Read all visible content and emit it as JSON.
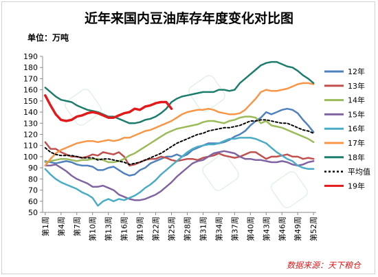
{
  "chart_data": {
    "type": "line",
    "title": "近年来国内豆油库存年度变化对比图",
    "unit_label": "单位：万吨",
    "source": "数据来源：天下粮仓",
    "ylim": [
      50,
      190
    ],
    "yticks": [
      50,
      60,
      70,
      80,
      90,
      100,
      110,
      120,
      130,
      140,
      150,
      160,
      170,
      180,
      190
    ],
    "grid": false,
    "legend_position": "right",
    "x_count": 52,
    "x_tick_labels": [
      "第1周",
      "第4周",
      "第7周",
      "第10周",
      "第13周",
      "第16周",
      "第19周",
      "第22周",
      "第25周",
      "第28周",
      "第31周",
      "第34周",
      "第37周",
      "第40周",
      "第43周",
      "第46周",
      "第49周",
      "第52周"
    ],
    "x_tick_weeks": [
      1,
      4,
      7,
      10,
      13,
      16,
      19,
      22,
      25,
      28,
      31,
      34,
      37,
      40,
      43,
      46,
      49,
      52
    ],
    "series": [
      {
        "name": "12年",
        "color": "#4f81bd",
        "width": 2.5,
        "values": [
          96,
          95,
          94,
          95,
          96,
          95,
          93,
          92,
          92,
          91,
          88,
          88,
          90,
          91,
          88,
          85,
          83,
          84,
          88,
          90,
          94,
          96,
          98,
          100,
          100,
          102,
          100,
          102,
          106,
          108,
          110,
          112,
          112,
          112,
          113,
          115,
          118,
          120,
          123,
          128,
          132,
          135,
          140,
          138,
          140,
          142,
          143,
          142,
          139,
          133,
          128,
          122
        ]
      },
      {
        "name": "13年",
        "color": "#c0504d",
        "width": 2.5,
        "values": [
          113,
          107,
          107,
          104,
          102,
          100,
          100,
          99,
          100,
          102,
          101,
          104,
          103,
          102,
          104,
          100,
          92,
          93,
          95,
          97,
          98,
          98,
          100,
          99,
          97,
          96,
          97,
          98,
          98,
          97,
          99,
          100,
          101,
          103,
          101,
          100,
          99,
          100,
          102,
          104,
          104,
          101,
          98,
          100,
          100,
          101,
          102,
          100,
          100,
          98,
          99,
          98
        ]
      },
      {
        "name": "14年",
        "color": "#9bbb59",
        "width": 2.5,
        "values": [
          95,
          96,
          97,
          98,
          98,
          97,
          96,
          97,
          97,
          98,
          98,
          97,
          95,
          95,
          96,
          98,
          101,
          103,
          106,
          109,
          112,
          115,
          118,
          121,
          123,
          125,
          126,
          127,
          128,
          129,
          131,
          132,
          132,
          131,
          130,
          132,
          133,
          135,
          136,
          136,
          135,
          130,
          132,
          128,
          127,
          126,
          124,
          122,
          120,
          118,
          116,
          113
        ]
      },
      {
        "name": "15年",
        "color": "#8064a2",
        "width": 2.5,
        "values": [
          92,
          92,
          93,
          90,
          87,
          83,
          80,
          78,
          76,
          73,
          73,
          74,
          72,
          70,
          66,
          64,
          62,
          61,
          61,
          62,
          64,
          66,
          69,
          73,
          77,
          82,
          86,
          90,
          94,
          96,
          97,
          100,
          103,
          104,
          105,
          104,
          103,
          100,
          98,
          98,
          97,
          97,
          96,
          95,
          95,
          96,
          95,
          93,
          92,
          93,
          95,
          96
        ]
      },
      {
        "name": "16年",
        "color": "#4bacc6",
        "width": 2.5,
        "values": [
          89,
          84,
          80,
          77,
          75,
          73,
          71,
          68,
          66,
          63,
          56,
          60,
          62,
          60,
          62,
          61,
          63,
          65,
          68,
          72,
          75,
          79,
          84,
          88,
          92,
          96,
          100,
          104,
          107,
          109,
          110,
          111,
          111,
          112,
          114,
          116,
          116,
          117,
          117,
          117,
          116,
          114,
          112,
          108,
          104,
          101,
          98,
          96,
          92,
          90,
          89,
          89
        ]
      },
      {
        "name": "17年",
        "color": "#f79646",
        "width": 2.5,
        "values": [
          92,
          98,
          103,
          106,
          108,
          110,
          112,
          113,
          114,
          114,
          113,
          114,
          115,
          114,
          115,
          117,
          117,
          119,
          121,
          123,
          124,
          126,
          128,
          130,
          132,
          135,
          138,
          140,
          141,
          142,
          142,
          143,
          142,
          140,
          139,
          138,
          138,
          139,
          142,
          147,
          152,
          158,
          160,
          159,
          159,
          160,
          161,
          163,
          165,
          166,
          166,
          165
        ]
      },
      {
        "name": "18年",
        "color": "#1c7d6c",
        "width": 2.5,
        "values": [
          162,
          158,
          154,
          151,
          150,
          149,
          146,
          144,
          142,
          141,
          140,
          138,
          136,
          136,
          134,
          132,
          130,
          130,
          131,
          133,
          134,
          136,
          139,
          143,
          149,
          152,
          154,
          155,
          156,
          157,
          158,
          158,
          158,
          160,
          160,
          159,
          160,
          166,
          170,
          174,
          178,
          182,
          184,
          185,
          185,
          183,
          181,
          180,
          177,
          173,
          170,
          166
        ]
      },
      {
        "name": "平均值",
        "color": "#000000",
        "width": 2,
        "dash": "3,3",
        "values": [
          108,
          104,
          102,
          101,
          101,
          101,
          100,
          99,
          99,
          99,
          97,
          98,
          98,
          97,
          96,
          95,
          93,
          94,
          95,
          97,
          99,
          101,
          103,
          106,
          109,
          112,
          114,
          116,
          118,
          120,
          121,
          123,
          124,
          125,
          126,
          126,
          127,
          128,
          130,
          132,
          132,
          133,
          133,
          132,
          131,
          130,
          130,
          128,
          126,
          124,
          123,
          121
        ]
      },
      {
        "name": "19年",
        "color": "#e31a1c",
        "width": 3.5,
        "values": [
          155,
          146,
          138,
          133,
          132,
          133,
          136,
          137,
          139,
          140,
          139,
          137,
          135,
          135,
          137,
          139,
          140,
          143,
          142,
          145,
          146,
          148,
          149,
          149,
          143
        ]
      }
    ]
  }
}
